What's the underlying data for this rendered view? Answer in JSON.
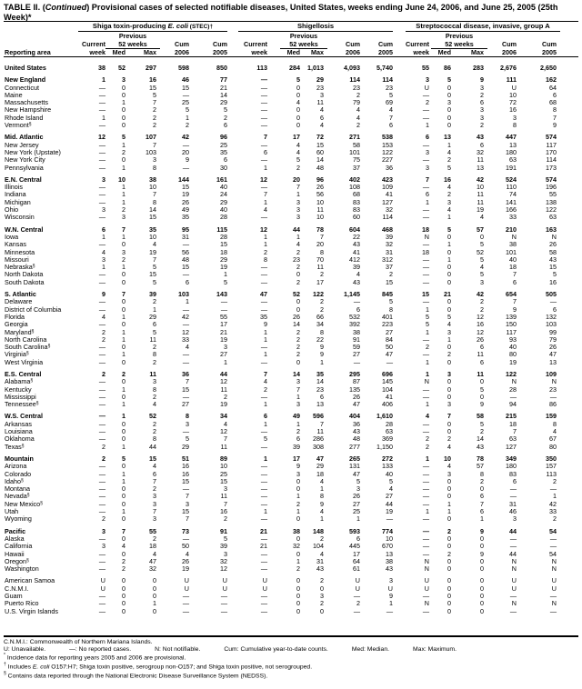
{
  "title": {
    "prefix": "TABLE II. (",
    "italic": "Continued",
    "rest": ") Provisional cases of selected notifiable diseases, United States, weeks ending June 24, 2006, and June 25, 2005 (25th Week)*"
  },
  "groups": [
    {
      "pre": "Shiga toxin-producing ",
      "italic": "E. coli",
      "post": " (STEC)†"
    },
    {
      "pre": "Shigellosis",
      "italic": "",
      "post": ""
    },
    {
      "pre": "Streptococcal disease, invasive, group A",
      "italic": "",
      "post": ""
    }
  ],
  "headers": {
    "reporting_area": "Reporting area",
    "previous": "Previous",
    "weeks52": "52 weeks",
    "current": "Current",
    "week": "week",
    "med": "Med",
    "max": "Max",
    "cum": "Cum",
    "y2006": "2006",
    "y2005": "2005"
  },
  "rows": [
    {
      "a": "United States",
      "b": 1,
      "v": [
        "38",
        "52",
        "297",
        "598",
        "850",
        "113",
        "284",
        "1,013",
        "4,093",
        "5,740",
        "55",
        "86",
        "283",
        "2,676",
        "2,650"
      ]
    },
    {
      "a": "New England",
      "b": 1,
      "g": 1,
      "v": [
        "1",
        "3",
        "16",
        "46",
        "77",
        "—",
        "5",
        "29",
        "114",
        "114",
        "3",
        "5",
        "9",
        "111",
        "162"
      ]
    },
    {
      "a": "Connecticut",
      "v": [
        "—",
        "0",
        "15",
        "15",
        "21",
        "—",
        "0",
        "23",
        "23",
        "23",
        "U",
        "0",
        "3",
        "U",
        "64"
      ]
    },
    {
      "a": "Maine",
      "v": [
        "—",
        "0",
        "5",
        "—",
        "14",
        "—",
        "0",
        "3",
        "2",
        "5",
        "—",
        "0",
        "2",
        "10",
        "6"
      ]
    },
    {
      "a": "Massachusetts",
      "v": [
        "—",
        "1",
        "7",
        "25",
        "29",
        "—",
        "4",
        "11",
        "79",
        "69",
        "2",
        "3",
        "6",
        "72",
        "68"
      ]
    },
    {
      "a": "New Hampshire",
      "v": [
        "—",
        "0",
        "2",
        "5",
        "5",
        "—",
        "0",
        "4",
        "4",
        "4",
        "—",
        "0",
        "3",
        "16",
        "8"
      ]
    },
    {
      "a": "Rhode Island",
      "v": [
        "1",
        "0",
        "2",
        "1",
        "2",
        "—",
        "0",
        "6",
        "4",
        "7",
        "—",
        "0",
        "3",
        "3",
        "7"
      ]
    },
    {
      "a": "Vermont",
      "n": "§",
      "v": [
        "—",
        "0",
        "2",
        "2",
        "6",
        "—",
        "0",
        "4",
        "2",
        "6",
        "1",
        "0",
        "2",
        "8",
        "9"
      ]
    },
    {
      "a": "Mid. Atlantic",
      "b": 1,
      "g": 1,
      "v": [
        "12",
        "5",
        "107",
        "42",
        "96",
        "7",
        "17",
        "72",
        "271",
        "538",
        "6",
        "13",
        "43",
        "447",
        "574"
      ]
    },
    {
      "a": "New Jersey",
      "v": [
        "—",
        "1",
        "7",
        "—",
        "25",
        "—",
        "4",
        "15",
        "58",
        "153",
        "—",
        "1",
        "6",
        "13",
        "117"
      ]
    },
    {
      "a": "New York (Upstate)",
      "v": [
        "—",
        "2",
        "103",
        "20",
        "35",
        "6",
        "4",
        "60",
        "101",
        "122",
        "3",
        "4",
        "32",
        "180",
        "170"
      ]
    },
    {
      "a": "New York City",
      "v": [
        "—",
        "0",
        "3",
        "9",
        "6",
        "—",
        "5",
        "14",
        "75",
        "227",
        "—",
        "2",
        "11",
        "63",
        "114"
      ]
    },
    {
      "a": "Pennsylvania",
      "v": [
        "—",
        "1",
        "8",
        "—",
        "30",
        "1",
        "2",
        "48",
        "37",
        "36",
        "3",
        "5",
        "13",
        "191",
        "173"
      ]
    },
    {
      "a": "E.N. Central",
      "b": 1,
      "g": 1,
      "v": [
        "3",
        "10",
        "38",
        "144",
        "161",
        "12",
        "20",
        "96",
        "402",
        "423",
        "7",
        "16",
        "42",
        "524",
        "574"
      ]
    },
    {
      "a": "Illinois",
      "v": [
        "—",
        "1",
        "10",
        "15",
        "40",
        "—",
        "7",
        "26",
        "108",
        "109",
        "—",
        "4",
        "10",
        "110",
        "196"
      ]
    },
    {
      "a": "Indiana",
      "v": [
        "—",
        "1",
        "7",
        "19",
        "24",
        "7",
        "1",
        "56",
        "68",
        "41",
        "6",
        "2",
        "11",
        "74",
        "55"
      ]
    },
    {
      "a": "Michigan",
      "v": [
        "—",
        "1",
        "8",
        "26",
        "29",
        "1",
        "3",
        "10",
        "83",
        "127",
        "1",
        "3",
        "11",
        "141",
        "138"
      ]
    },
    {
      "a": "Ohio",
      "v": [
        "3",
        "2",
        "14",
        "49",
        "40",
        "4",
        "3",
        "11",
        "83",
        "32",
        "—",
        "4",
        "19",
        "166",
        "122"
      ]
    },
    {
      "a": "Wisconsin",
      "v": [
        "—",
        "3",
        "15",
        "35",
        "28",
        "—",
        "3",
        "10",
        "60",
        "114",
        "—",
        "1",
        "4",
        "33",
        "63"
      ]
    },
    {
      "a": "W.N. Central",
      "b": 1,
      "g": 1,
      "v": [
        "6",
        "7",
        "35",
        "95",
        "115",
        "12",
        "44",
        "78",
        "604",
        "468",
        "18",
        "5",
        "57",
        "210",
        "163"
      ]
    },
    {
      "a": "Iowa",
      "v": [
        "1",
        "1",
        "10",
        "31",
        "28",
        "1",
        "1",
        "7",
        "22",
        "39",
        "N",
        "0",
        "0",
        "N",
        "N"
      ]
    },
    {
      "a": "Kansas",
      "v": [
        "—",
        "0",
        "4",
        "—",
        "15",
        "1",
        "4",
        "20",
        "43",
        "32",
        "—",
        "1",
        "5",
        "38",
        "26"
      ]
    },
    {
      "a": "Minnesota",
      "v": [
        "4",
        "3",
        "19",
        "56",
        "18",
        "2",
        "2",
        "8",
        "41",
        "31",
        "18",
        "0",
        "52",
        "101",
        "58"
      ]
    },
    {
      "a": "Missouri",
      "v": [
        "3",
        "2",
        "7",
        "48",
        "29",
        "8",
        "23",
        "70",
        "412",
        "312",
        "—",
        "1",
        "5",
        "40",
        "43"
      ]
    },
    {
      "a": "Nebraska",
      "n": "§",
      "v": [
        "1",
        "1",
        "5",
        "15",
        "19",
        "—",
        "2",
        "11",
        "39",
        "37",
        "—",
        "0",
        "4",
        "18",
        "15"
      ]
    },
    {
      "a": "North Dakota",
      "v": [
        "—",
        "0",
        "15",
        "—",
        "1",
        "—",
        "0",
        "2",
        "4",
        "2",
        "—",
        "0",
        "5",
        "7",
        "5"
      ]
    },
    {
      "a": "South Dakota",
      "v": [
        "—",
        "0",
        "5",
        "6",
        "5",
        "—",
        "2",
        "17",
        "43",
        "15",
        "—",
        "0",
        "3",
        "6",
        "16"
      ]
    },
    {
      "a": "S. Atlantic",
      "b": 1,
      "g": 1,
      "v": [
        "9",
        "7",
        "39",
        "103",
        "143",
        "47",
        "52",
        "122",
        "1,145",
        "845",
        "15",
        "21",
        "42",
        "654",
        "505"
      ]
    },
    {
      "a": "Delaware",
      "v": [
        "—",
        "0",
        "2",
        "1",
        "—",
        "—",
        "0",
        "2",
        "—",
        "5",
        "—",
        "0",
        "2",
        "7",
        "—"
      ]
    },
    {
      "a": "District of Columbia",
      "v": [
        "—",
        "0",
        "1",
        "—",
        "—",
        "—",
        "0",
        "2",
        "6",
        "8",
        "1",
        "0",
        "2",
        "9",
        "6"
      ]
    },
    {
      "a": "Florida",
      "v": [
        "4",
        "1",
        "29",
        "42",
        "55",
        "35",
        "26",
        "66",
        "532",
        "401",
        "5",
        "5",
        "12",
        "139",
        "132"
      ]
    },
    {
      "a": "Georgia",
      "v": [
        "—",
        "0",
        "6",
        "—",
        "17",
        "9",
        "14",
        "34",
        "392",
        "223",
        "5",
        "4",
        "16",
        "150",
        "103"
      ]
    },
    {
      "a": "Maryland",
      "n": "§",
      "v": [
        "2",
        "1",
        "5",
        "12",
        "21",
        "1",
        "2",
        "8",
        "38",
        "27",
        "1",
        "3",
        "12",
        "117",
        "99"
      ]
    },
    {
      "a": "North Carolina",
      "v": [
        "2",
        "1",
        "11",
        "33",
        "19",
        "1",
        "2",
        "22",
        "91",
        "84",
        "—",
        "1",
        "26",
        "93",
        "79"
      ]
    },
    {
      "a": "South Carolina",
      "n": "§",
      "v": [
        "—",
        "0",
        "2",
        "4",
        "3",
        "—",
        "2",
        "9",
        "59",
        "50",
        "2",
        "0",
        "6",
        "40",
        "26"
      ]
    },
    {
      "a": "Virginia",
      "n": "§",
      "v": [
        "—",
        "1",
        "8",
        "—",
        "27",
        "1",
        "2",
        "9",
        "27",
        "47",
        "—",
        "2",
        "11",
        "80",
        "47"
      ]
    },
    {
      "a": "West Virginia",
      "v": [
        "—",
        "0",
        "2",
        "—",
        "1",
        "—",
        "0",
        "1",
        "—",
        "—",
        "1",
        "0",
        "6",
        "19",
        "13"
      ]
    },
    {
      "a": "E.S. Central",
      "b": 1,
      "g": 1,
      "v": [
        "2",
        "2",
        "11",
        "36",
        "44",
        "7",
        "14",
        "35",
        "295",
        "696",
        "1",
        "3",
        "11",
        "122",
        "109"
      ]
    },
    {
      "a": "Alabama",
      "n": "§",
      "v": [
        "—",
        "0",
        "3",
        "7",
        "12",
        "4",
        "3",
        "14",
        "87",
        "145",
        "N",
        "0",
        "0",
        "N",
        "N"
      ]
    },
    {
      "a": "Kentucky",
      "v": [
        "—",
        "1",
        "8",
        "15",
        "11",
        "2",
        "7",
        "23",
        "135",
        "104",
        "—",
        "0",
        "5",
        "28",
        "23"
      ]
    },
    {
      "a": "Mississippi",
      "v": [
        "—",
        "0",
        "2",
        "—",
        "2",
        "—",
        "1",
        "6",
        "26",
        "41",
        "—",
        "0",
        "0",
        "—",
        "—"
      ]
    },
    {
      "a": "Tennessee",
      "n": "§",
      "v": [
        "—",
        "1",
        "4",
        "27",
        "19",
        "1",
        "3",
        "13",
        "47",
        "406",
        "1",
        "3",
        "9",
        "94",
        "86"
      ]
    },
    {
      "a": "W.S. Central",
      "b": 1,
      "g": 1,
      "v": [
        "—",
        "1",
        "52",
        "8",
        "34",
        "6",
        "49",
        "596",
        "404",
        "1,610",
        "4",
        "7",
        "58",
        "215",
        "159"
      ]
    },
    {
      "a": "Arkansas",
      "v": [
        "—",
        "0",
        "2",
        "3",
        "4",
        "1",
        "1",
        "7",
        "36",
        "28",
        "—",
        "0",
        "5",
        "18",
        "8"
      ]
    },
    {
      "a": "Louisiana",
      "v": [
        "—",
        "0",
        "2",
        "—",
        "12",
        "—",
        "2",
        "11",
        "43",
        "63",
        "—",
        "0",
        "2",
        "7",
        "4"
      ]
    },
    {
      "a": "Oklahoma",
      "v": [
        "—",
        "0",
        "8",
        "5",
        "7",
        "5",
        "6",
        "286",
        "48",
        "369",
        "2",
        "2",
        "14",
        "63",
        "67"
      ]
    },
    {
      "a": "Texas",
      "n": "§",
      "v": [
        "2",
        "1",
        "44",
        "29",
        "11",
        "—",
        "39",
        "308",
        "277",
        "1,150",
        "2",
        "4",
        "43",
        "127",
        "80"
      ]
    },
    {
      "a": "Mountain",
      "b": 1,
      "g": 1,
      "v": [
        "2",
        "5",
        "15",
        "51",
        "89",
        "1",
        "17",
        "47",
        "265",
        "272",
        "1",
        "10",
        "78",
        "349",
        "350"
      ]
    },
    {
      "a": "Arizona",
      "v": [
        "—",
        "0",
        "4",
        "16",
        "10",
        "—",
        "9",
        "29",
        "131",
        "133",
        "—",
        "4",
        "57",
        "180",
        "157"
      ]
    },
    {
      "a": "Colorado",
      "v": [
        "—",
        "1",
        "6",
        "16",
        "25",
        "—",
        "3",
        "18",
        "47",
        "40",
        "—",
        "3",
        "8",
        "83",
        "113"
      ]
    },
    {
      "a": "Idaho",
      "n": "§",
      "v": [
        "—",
        "1",
        "7",
        "15",
        "15",
        "—",
        "0",
        "4",
        "5",
        "5",
        "—",
        "0",
        "2",
        "6",
        "2"
      ]
    },
    {
      "a": "Montana",
      "v": [
        "—",
        "0",
        "2",
        "—",
        "3",
        "—",
        "0",
        "1",
        "3",
        "4",
        "—",
        "0",
        "0",
        "—",
        "—"
      ]
    },
    {
      "a": "Nevada",
      "n": "§",
      "v": [
        "—",
        "0",
        "3",
        "7",
        "11",
        "—",
        "1",
        "8",
        "26",
        "27",
        "—",
        "0",
        "6",
        "—",
        "1"
      ]
    },
    {
      "a": "New Mexico",
      "n": "§",
      "v": [
        "—",
        "0",
        "3",
        "3",
        "7",
        "—",
        "2",
        "9",
        "27",
        "44",
        "—",
        "1",
        "7",
        "31",
        "42"
      ]
    },
    {
      "a": "Utah",
      "v": [
        "—",
        "1",
        "7",
        "15",
        "16",
        "1",
        "1",
        "4",
        "25",
        "19",
        "1",
        "1",
        "6",
        "46",
        "33"
      ]
    },
    {
      "a": "Wyoming",
      "v": [
        "2",
        "0",
        "3",
        "7",
        "2",
        "—",
        "0",
        "1",
        "1",
        "—",
        "—",
        "0",
        "1",
        "3",
        "2"
      ]
    },
    {
      "a": "Pacific",
      "b": 1,
      "g": 1,
      "v": [
        "3",
        "7",
        "55",
        "73",
        "91",
        "21",
        "38",
        "148",
        "593",
        "774",
        "—",
        "2",
        "9",
        "44",
        "54"
      ]
    },
    {
      "a": "Alaska",
      "v": [
        "—",
        "0",
        "2",
        "—",
        "5",
        "—",
        "0",
        "2",
        "6",
        "10",
        "—",
        "0",
        "0",
        "—",
        "—"
      ]
    },
    {
      "a": "California",
      "v": [
        "3",
        "4",
        "18",
        "50",
        "39",
        "21",
        "32",
        "104",
        "445",
        "670",
        "—",
        "0",
        "0",
        "—",
        "—"
      ]
    },
    {
      "a": "Hawaii",
      "v": [
        "—",
        "0",
        "4",
        "4",
        "3",
        "—",
        "0",
        "4",
        "17",
        "13",
        "—",
        "2",
        "9",
        "44",
        "54"
      ]
    },
    {
      "a": "Oregon",
      "n": "§",
      "v": [
        "—",
        "2",
        "47",
        "26",
        "32",
        "—",
        "1",
        "31",
        "64",
        "38",
        "N",
        "0",
        "0",
        "N",
        "N"
      ]
    },
    {
      "a": "Washington",
      "v": [
        "—",
        "2",
        "32",
        "19",
        "12",
        "—",
        "2",
        "43",
        "61",
        "43",
        "N",
        "0",
        "0",
        "N",
        "N"
      ]
    },
    {
      "a": "American Samoa",
      "g": 1,
      "v": [
        "U",
        "0",
        "0",
        "U",
        "U",
        "U",
        "0",
        "2",
        "U",
        "3",
        "U",
        "0",
        "0",
        "U",
        "U"
      ]
    },
    {
      "a": "C.N.M.I.",
      "v": [
        "U",
        "0",
        "0",
        "U",
        "U",
        "U",
        "0",
        "0",
        "U",
        "U",
        "U",
        "0",
        "0",
        "U",
        "U"
      ]
    },
    {
      "a": "Guam",
      "v": [
        "—",
        "0",
        "0",
        "—",
        "—",
        "—",
        "0",
        "3",
        "—",
        "9",
        "—",
        "0",
        "0",
        "—",
        "—"
      ]
    },
    {
      "a": "Puerto Rico",
      "v": [
        "—",
        "0",
        "1",
        "—",
        "—",
        "—",
        "0",
        "2",
        "2",
        "1",
        "N",
        "0",
        "0",
        "N",
        "N"
      ]
    },
    {
      "a": "U.S. Virgin Islands",
      "v": [
        "—",
        "0",
        "0",
        "—",
        "—",
        "—",
        "0",
        "0",
        "—",
        "—",
        "—",
        "0",
        "0",
        "—",
        "—"
      ]
    }
  ],
  "footnotes": {
    "cnmi": "C.N.M.I.: Commonwealth of Northern Mariana Islands.",
    "legend": [
      "U: Unavailable.",
      "—: No reported cases.",
      "N: Not notifiable.",
      "Cum: Cumulative year-to-date counts.",
      "Med: Median.",
      "Max: Maximum."
    ],
    "star_mark": "*",
    "star": "Incidence data for reporting years 2005 and 2006 are provisional.",
    "dagger_mark": "†",
    "dagger_pre": "Includes ",
    "dagger_italic": "E. coli",
    "dagger_post": " O157:H7; Shiga toxin positive, serogroup non-O157; and Shiga toxin positive, not serogrouped.",
    "section_mark": "§",
    "section": "Contains data reported through the National Electronic Disease Surveillance System (NEDSS)."
  }
}
